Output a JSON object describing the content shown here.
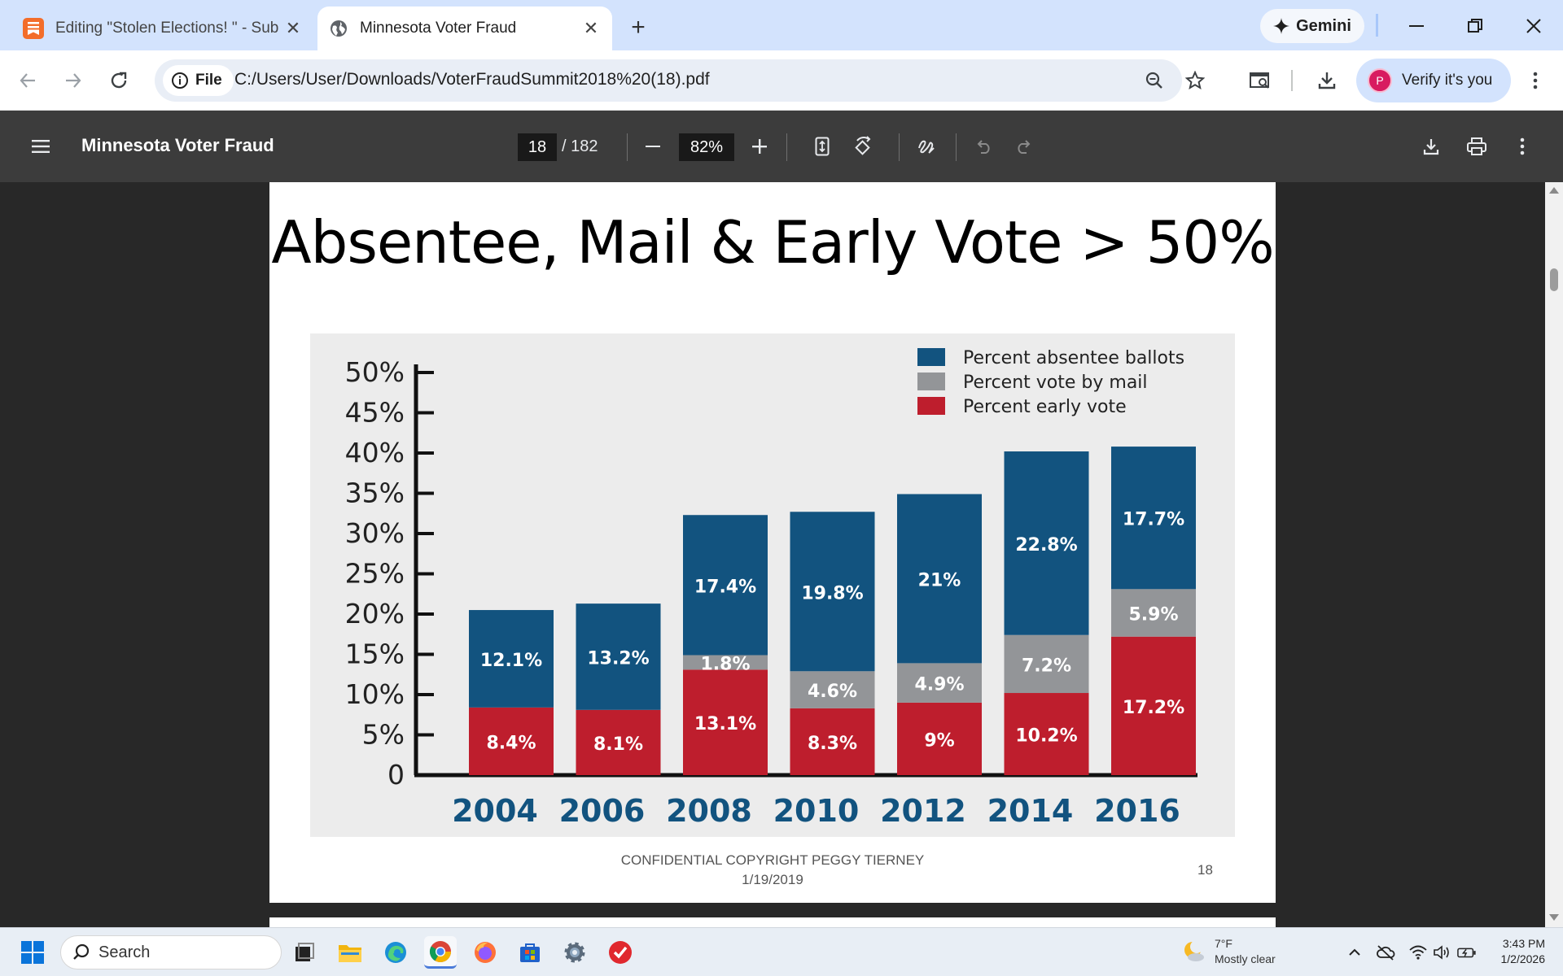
{
  "browser": {
    "tabs": [
      {
        "title": "Editing \"Stolen Elections! \" - Sub",
        "active": false
      },
      {
        "title": "Minnesota Voter Fraud",
        "active": true
      }
    ],
    "gemini_label": "Gemini",
    "omnibox": {
      "chip_label": "File",
      "url": "C:/Users/User/Downloads/VoterFraudSummit2018%20(18).pdf"
    },
    "profile": {
      "initial": "P",
      "label": "Verify it's you"
    }
  },
  "pdf": {
    "title": "Minnesota Voter Fraud",
    "page_current": "18",
    "page_total": "/ 182",
    "zoom": "82%"
  },
  "slide": {
    "title": "Absentee, Mail & Early Vote > 50%",
    "footer_line1": "CONFIDENTIAL COPYRIGHT PEGGY TIERNEY",
    "footer_line2": "1/19/2019",
    "page_number": "18"
  },
  "chart_data": {
    "type": "bar",
    "stacked": true,
    "categories": [
      "2004",
      "2006",
      "2008",
      "2010",
      "2012",
      "2014",
      "2016"
    ],
    "series": [
      {
        "name": "Percent early vote",
        "color": "#be1e2d",
        "values": [
          8.4,
          8.1,
          13.1,
          8.3,
          9,
          10.2,
          17.2
        ],
        "labels": [
          "8.4%",
          "8.1%",
          "13.1%",
          "8.3%",
          "9%",
          "10.2%",
          "17.2%"
        ]
      },
      {
        "name": "Percent vote by mail",
        "color": "#939598",
        "values": [
          0,
          0,
          1.8,
          4.6,
          4.9,
          7.2,
          5.9
        ],
        "labels": [
          "",
          "",
          "1.8%",
          "4.6%",
          "4.9%",
          "7.2%",
          "5.9%"
        ]
      },
      {
        "name": "Percent absentee ballots",
        "color": "#12537f",
        "values": [
          12.1,
          13.2,
          17.4,
          19.8,
          21,
          22.8,
          17.7
        ],
        "labels": [
          "12.1%",
          "13.2%",
          "17.4%",
          "19.8%",
          "21%",
          "22.8%",
          "17.7%"
        ]
      }
    ],
    "legend_order": [
      "Percent absentee ballots",
      "Percent vote by mail",
      "Percent early vote"
    ],
    "legend_position": "top-right",
    "y_ticks": [
      "0",
      "5%",
      "10%",
      "15%",
      "20%",
      "25%",
      "30%",
      "35%",
      "40%",
      "45%",
      "50%"
    ],
    "ylim": [
      0,
      50
    ],
    "title": "Absentee, Mail & Early Vote > 50%",
    "xlabel": "",
    "ylabel": ""
  },
  "taskbar": {
    "search_placeholder": "Search",
    "weather_temp": "7°F",
    "weather_desc": "Mostly clear",
    "time": "3:43 PM",
    "date": "1/2/2026"
  }
}
